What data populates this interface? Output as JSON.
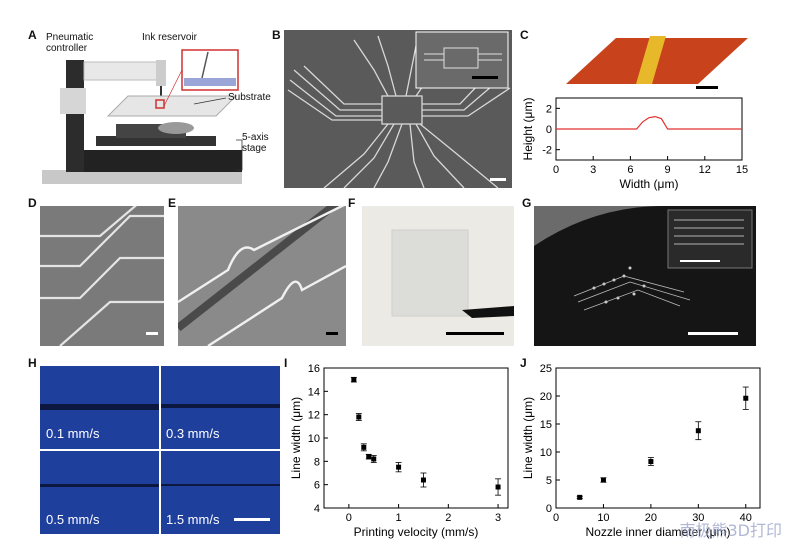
{
  "panels": {
    "A": "A",
    "B": "B",
    "C": "C",
    "D": "D",
    "E": "E",
    "F": "F",
    "G": "G",
    "H": "H",
    "I": "I",
    "J": "J"
  },
  "panel_a": {
    "pneumatic_controller": "Pneumatic\ncontroller",
    "ink_reservoir": "Ink reservoir",
    "substrate": "Substrate",
    "stage": "5-axis stage"
  },
  "panel_h": {
    "speeds": [
      "0.1 mm/s",
      "0.3 mm/s",
      "0.5 mm/s",
      "1.5 mm/s"
    ]
  },
  "watermark": "南极熊3D打印",
  "chart_data": [
    {
      "panel": "C",
      "type": "line",
      "xlabel": "Width (μm)",
      "ylabel": "Height (μm)",
      "xlim": [
        0,
        15
      ],
      "ylim": [
        -3,
        3
      ],
      "xticks": [
        "0",
        "3",
        "6",
        "9",
        "12",
        "15"
      ],
      "yticks": [
        "2",
        "0",
        "-2"
      ],
      "x": [
        0,
        6.5,
        7.0,
        7.5,
        8.0,
        8.5,
        9.0,
        15
      ],
      "y": [
        0,
        0,
        0.7,
        1.1,
        1.2,
        1.0,
        0,
        0
      ],
      "color": "#e03030"
    },
    {
      "panel": "I",
      "type": "scatter",
      "xlabel": "Printing velocity (mm/s)",
      "ylabel": "Line width (μm)",
      "xlim": [
        -0.5,
        3.2
      ],
      "ylim": [
        4,
        16
      ],
      "xticks": [
        "0",
        "1",
        "2",
        "3"
      ],
      "yticks": [
        "4",
        "6",
        "8",
        "10",
        "12",
        "14",
        "16"
      ],
      "x": [
        0.1,
        0.2,
        0.3,
        0.4,
        0.5,
        1.0,
        1.5,
        3.0
      ],
      "y": [
        15.0,
        11.8,
        9.2,
        8.4,
        8.2,
        7.5,
        6.4,
        5.8
      ],
      "err": [
        0.2,
        0.3,
        0.3,
        0.2,
        0.3,
        0.4,
        0.6,
        0.7
      ]
    },
    {
      "panel": "J",
      "type": "scatter",
      "xlabel": "Nozzle inner diameter (μm)",
      "ylabel": "Line width (μm)",
      "xlim": [
        0,
        43
      ],
      "ylim": [
        0,
        25
      ],
      "xticks": [
        "0",
        "10",
        "20",
        "30",
        "40"
      ],
      "yticks": [
        "0",
        "5",
        "10",
        "15",
        "20",
        "25"
      ],
      "x": [
        5,
        10,
        20,
        30,
        40
      ],
      "y": [
        1.9,
        5.0,
        8.3,
        13.8,
        19.6
      ],
      "err": [
        0.2,
        0.4,
        0.7,
        1.6,
        2.0
      ]
    }
  ]
}
